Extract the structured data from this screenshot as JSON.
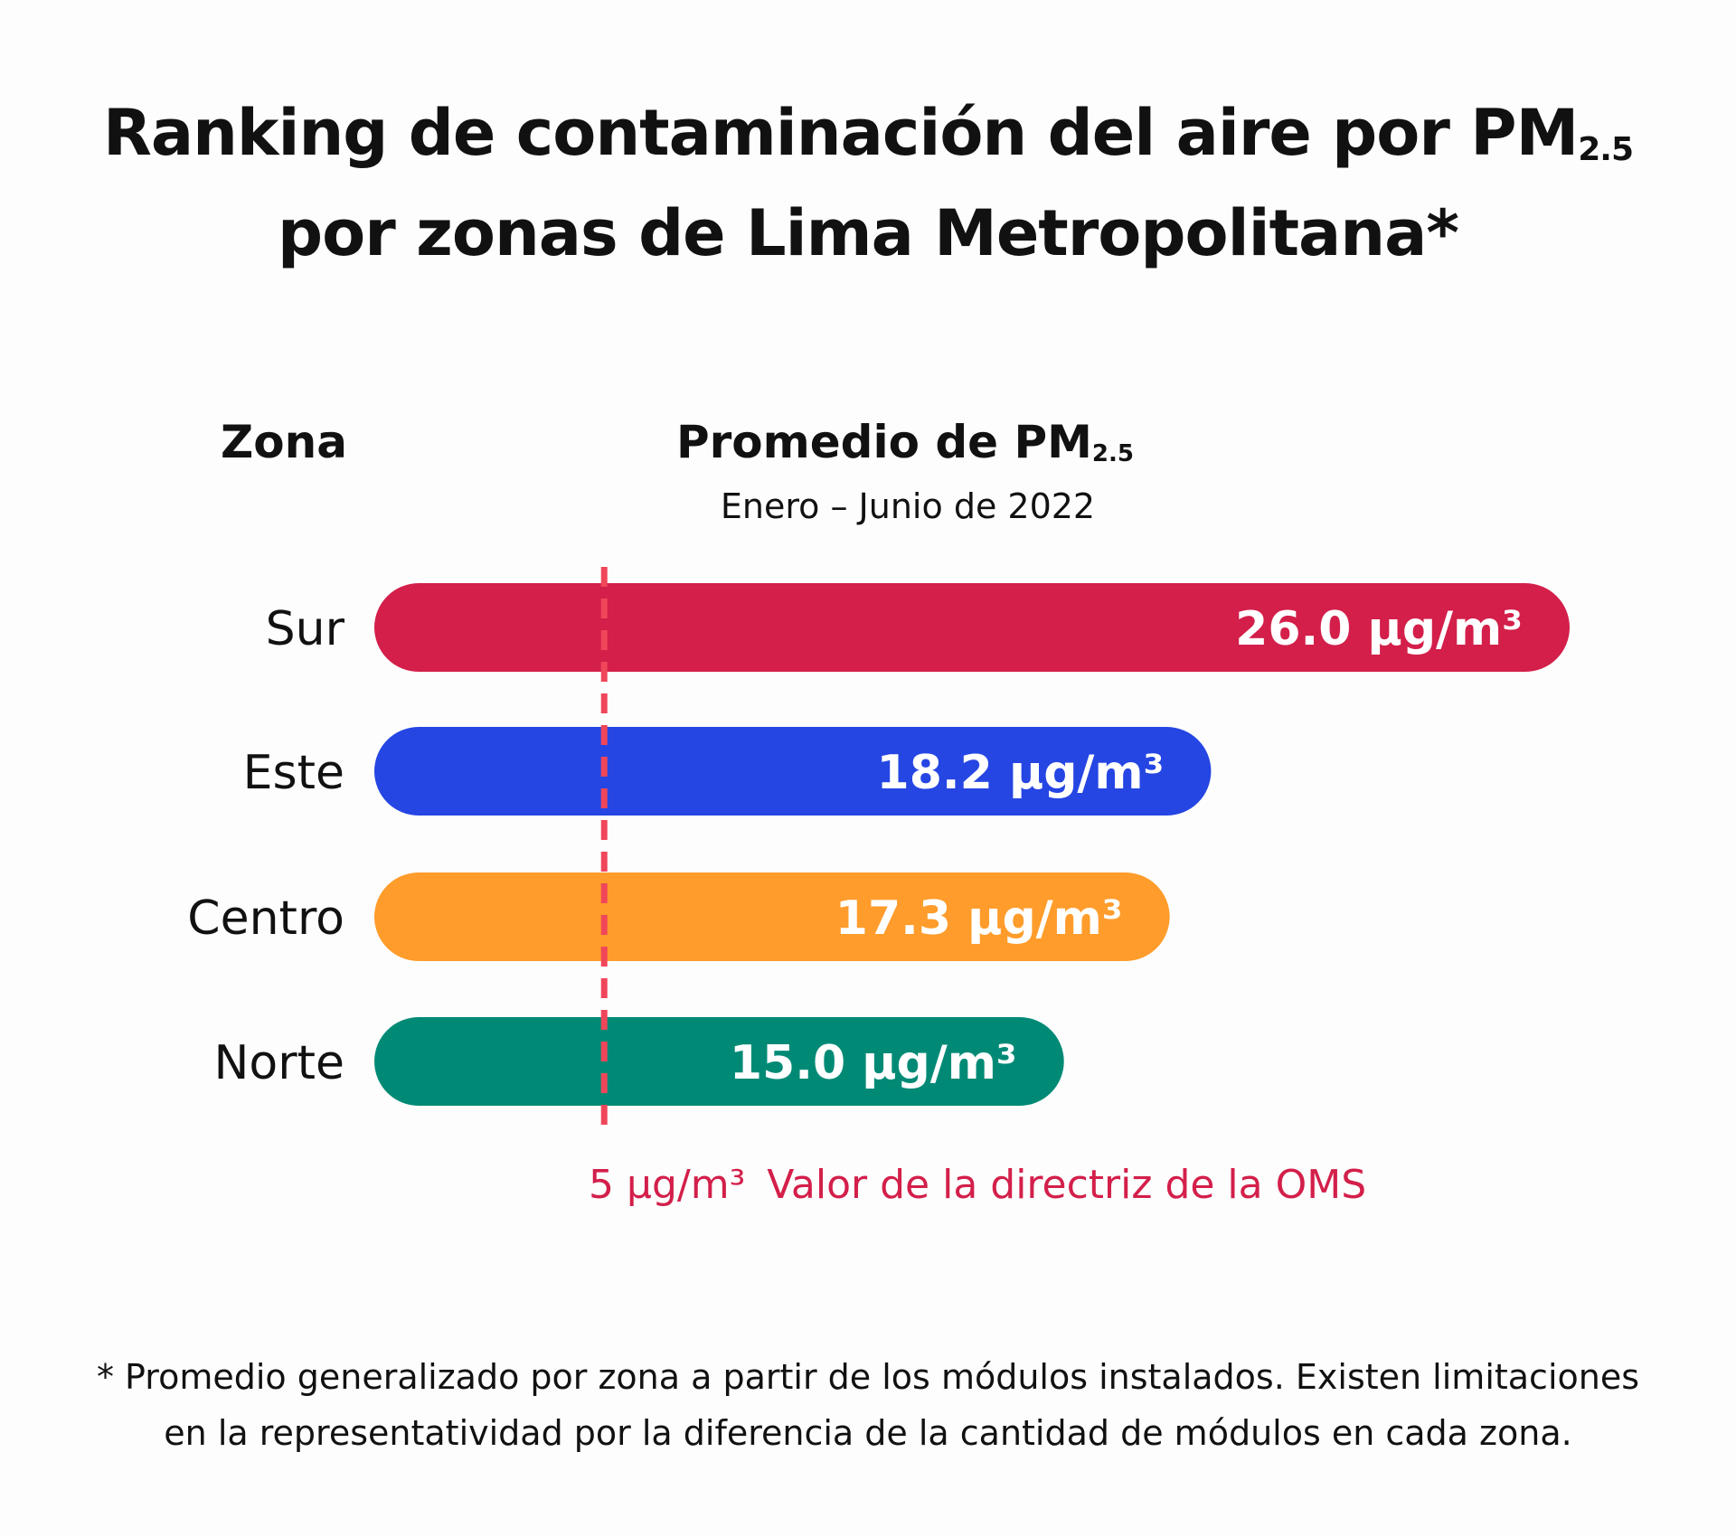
{
  "title": {
    "line1": "Ranking de contaminación del aire por PM",
    "line1_sub": "2.5",
    "line2": "por zonas de Lima Metropolitana*"
  },
  "headers": {
    "zona": "Zona",
    "promedio": "Promedio de PM",
    "promedio_sub": "2.5",
    "period": "Enero – Junio de 2022"
  },
  "chart_data": {
    "type": "bar",
    "orientation": "horizontal",
    "categories": [
      "Sur",
      "Este",
      "Centro",
      "Norte"
    ],
    "values": [
      26.0,
      18.2,
      17.3,
      15.0
    ],
    "value_labels": [
      "26.0 µg/m³",
      "18.2 µg/m³",
      "17.3 µg/m³",
      "15.0 µg/m³"
    ],
    "colors": [
      "#D31F4A",
      "#2546E3",
      "#FF9C2B",
      "#008A76"
    ],
    "unit": "µg/m³",
    "xlim": [
      0,
      26
    ],
    "grid": false,
    "reference_line": {
      "value": 5,
      "label_value": "5 µg/m³",
      "label": "Valor de la directriz de la OMS",
      "color": "#F0465A",
      "text_color": "#D31F4A",
      "style": "dashed"
    }
  },
  "footnote": {
    "line1": "* Promedio generalizado por zona a partir de los módulos instalados. Existen limitaciones",
    "line2": "en la representatividad por la diferencia de la cantidad de módulos en cada zona."
  }
}
